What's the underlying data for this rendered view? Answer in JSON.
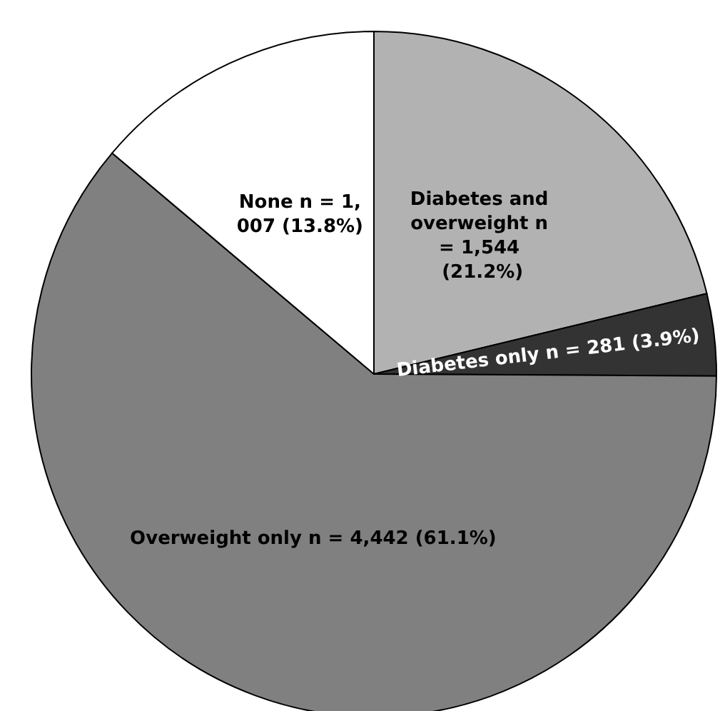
{
  "chart_data": {
    "type": "pie",
    "categories": [
      "Diabetes and overweight",
      "Diabetes only",
      "Overweight only",
      "None"
    ],
    "values": [
      1544,
      281,
      4442,
      1007
    ],
    "value_labels": [
      "n = 1,544 (21.2%)",
      "n = 281 (3.9%)",
      "n = 4,442 (61.1%)",
      "n = 1,007 (13.8%)"
    ],
    "colors": [
      "#b2b2b2",
      "#333333",
      "#808080",
      "#ffffff"
    ],
    "legend": false
  }
}
